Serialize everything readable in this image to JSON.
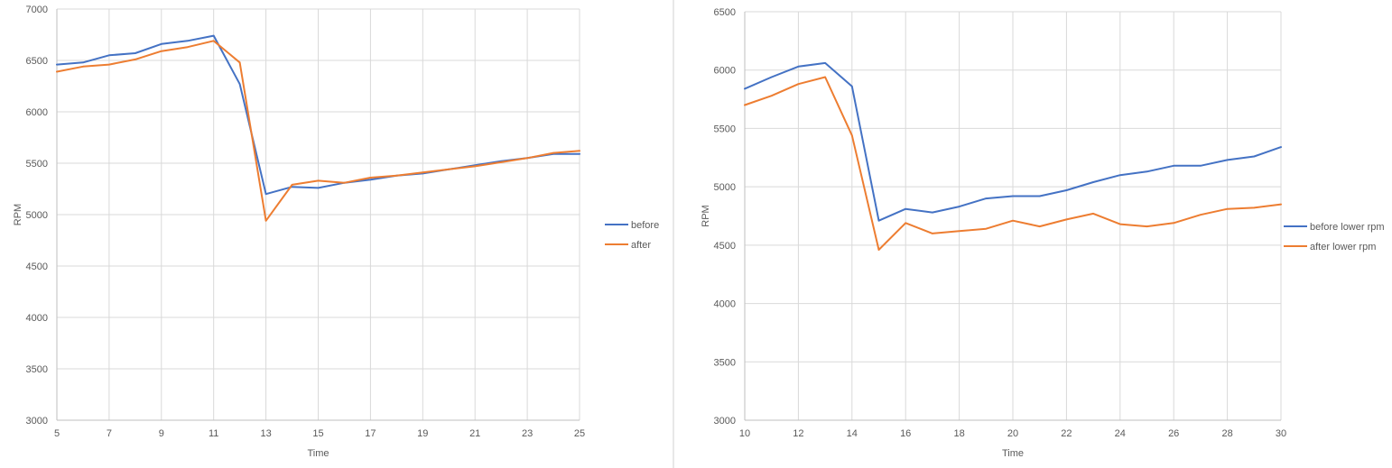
{
  "chart_data": [
    {
      "type": "line",
      "title": "",
      "xlabel": "Time",
      "ylabel": "RPM",
      "xlim": [
        5,
        25
      ],
      "ylim": [
        3000,
        7000
      ],
      "xticks": [
        5,
        7,
        9,
        11,
        13,
        15,
        17,
        19,
        21,
        23,
        25
      ],
      "yticks": [
        3000,
        3500,
        4000,
        4500,
        5000,
        5500,
        6000,
        6500,
        7000
      ],
      "grid": true,
      "legend_position": "right",
      "x": [
        5,
        6,
        7,
        8,
        9,
        10,
        11,
        12,
        13,
        14,
        15,
        16,
        17,
        18,
        19,
        20,
        21,
        22,
        23,
        24,
        25
      ],
      "series": [
        {
          "name": "before",
          "color": "#4472c4",
          "values": [
            6460,
            6480,
            6550,
            6570,
            6660,
            6690,
            6740,
            6270,
            5200,
            5270,
            5260,
            5310,
            5340,
            5380,
            5400,
            5440,
            5480,
            5520,
            5550,
            5590,
            5590
          ]
        },
        {
          "name": "after",
          "color": "#ed7d31",
          "values": [
            6390,
            6440,
            6460,
            6510,
            6590,
            6630,
            6690,
            6480,
            4940,
            5290,
            5330,
            5310,
            5360,
            5380,
            5410,
            5440,
            5470,
            5510,
            5550,
            5600,
            5620
          ]
        }
      ]
    },
    {
      "type": "line",
      "title": "",
      "xlabel": "Time",
      "ylabel": "RPM",
      "xlim": [
        10,
        30
      ],
      "ylim": [
        3000,
        6500
      ],
      "xticks": [
        10,
        12,
        14,
        16,
        18,
        20,
        22,
        24,
        26,
        28,
        30
      ],
      "yticks": [
        3000,
        3500,
        4000,
        4500,
        5000,
        5500,
        6000,
        6500
      ],
      "grid": true,
      "legend_position": "right",
      "x": [
        10,
        11,
        12,
        13,
        14,
        15,
        16,
        17,
        18,
        19,
        20,
        21,
        22,
        23,
        24,
        25,
        26,
        27,
        28,
        29,
        30
      ],
      "series": [
        {
          "name": "before lower rpm",
          "color": "#4472c4",
          "values": [
            5840,
            5940,
            6030,
            6060,
            5860,
            4710,
            4810,
            4780,
            4830,
            4900,
            4920,
            4920,
            4970,
            5040,
            5100,
            5130,
            5180,
            5180,
            5230,
            5260,
            5340
          ]
        },
        {
          "name": "after lower rpm",
          "color": "#ed7d31",
          "values": [
            5700,
            5780,
            5880,
            5940,
            5440,
            4460,
            4690,
            4600,
            4620,
            4640,
            4710,
            4660,
            4720,
            4770,
            4680,
            4660,
            4690,
            4760,
            4810,
            4820,
            4850
          ]
        }
      ]
    }
  ]
}
